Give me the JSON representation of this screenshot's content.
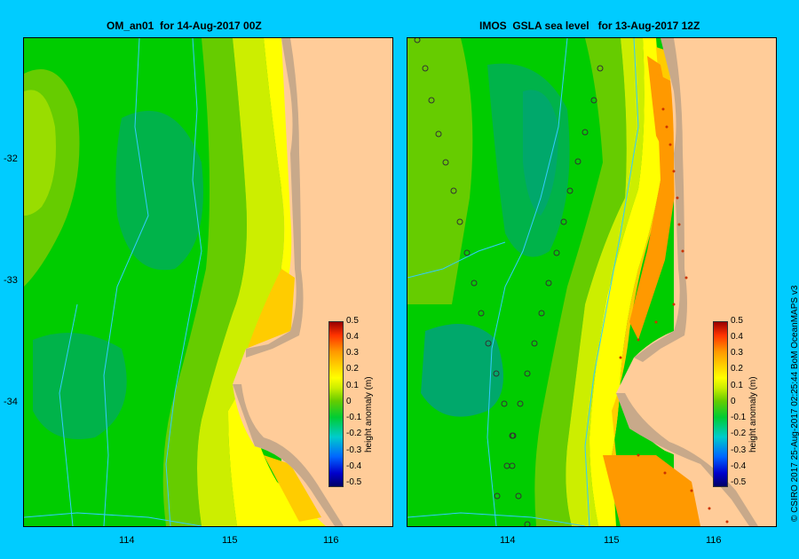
{
  "panels": {
    "left": {
      "title": "OM_an01  for 14-Aug-2017 00Z"
    },
    "right": {
      "title": "IMOS  GSLA sea level   for 13-Aug-2017 12Z"
    }
  },
  "axes": {
    "lat_ticks": [
      "-32",
      "-33",
      "-34"
    ],
    "lon_ticks": [
      "114",
      "115",
      "116"
    ]
  },
  "colorbar": {
    "label": "height anomaly (m)",
    "ticks": [
      "0.5",
      "0.4",
      "0.3",
      "0.2",
      "0.1",
      "0",
      "-0.1",
      "-0.2",
      "-0.3",
      "-0.4",
      "-0.5"
    ],
    "range": [
      -0.5,
      0.5
    ]
  },
  "credit": "© CSIRO 2017   25-Aug-2017 02:25:44 BoM OceanMAPS v3",
  "colors": {
    "background": "#00ccff",
    "land": "#ffcc99",
    "shelf": "#c8a98a",
    "contour_line": "#33ccff"
  }
}
